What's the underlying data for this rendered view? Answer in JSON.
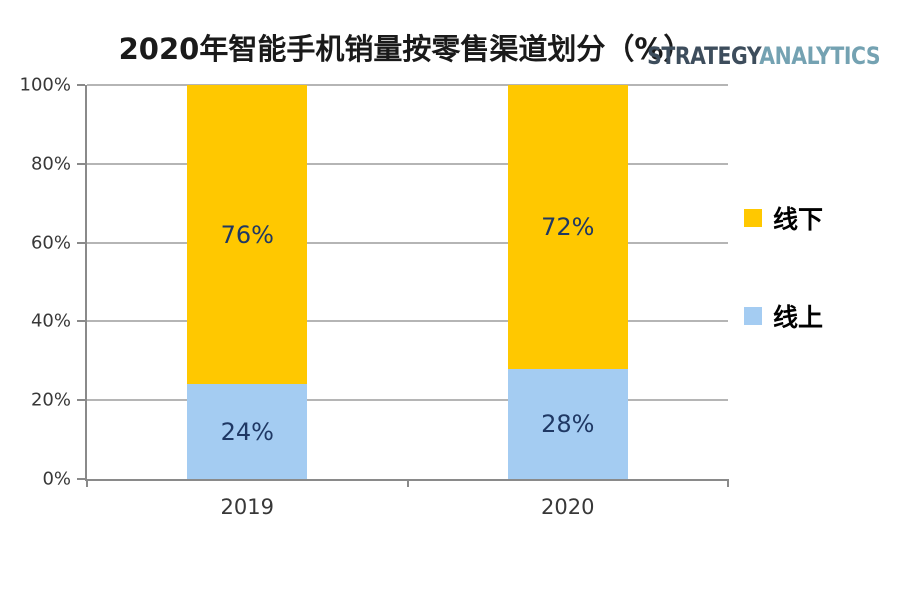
{
  "logo": {
    "part1": "STRATEGY",
    "part2": "ANALYTICS",
    "part1_color": "#3d4d5c",
    "part2_color": "#74a2b2"
  },
  "legend": {
    "items": [
      {
        "label": "线下",
        "color": "#FFC800"
      },
      {
        "label": "线上",
        "color": "#A4CCF2"
      }
    ]
  },
  "chart_data": {
    "type": "bar",
    "stacked": true,
    "title": "2020年智能手机销量按零售渠道划分（%）",
    "categories": [
      "2019",
      "2020"
    ],
    "series": [
      {
        "name": "线上",
        "color": "#A4CCF2",
        "values": [
          24,
          28
        ]
      },
      {
        "name": "线下",
        "color": "#FFC800",
        "values": [
          76,
          72
        ]
      }
    ],
    "ylim": [
      0,
      100
    ],
    "yticks": [
      0,
      20,
      40,
      60,
      80,
      100
    ],
    "ytick_labels": [
      "0%",
      "20%",
      "40%",
      "60%",
      "80%",
      "100%"
    ],
    "grid": true,
    "legend_position": "right",
    "data_label_suffix": "%",
    "data_label_color": "#1F3864"
  }
}
